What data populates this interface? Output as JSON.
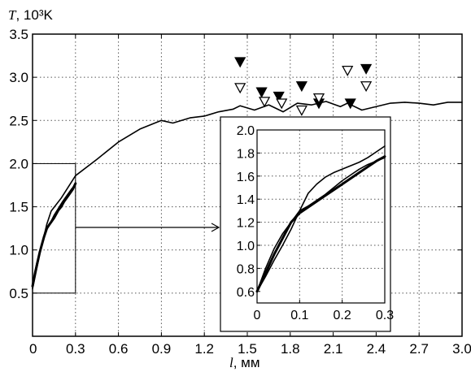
{
  "chart_data": {
    "type": "line",
    "xlabel_var": "l",
    "xlabel_unit": ", мм",
    "ylabel_var": "T",
    "ylabel_unit": ", 10³K",
    "xlim": [
      0,
      3.0
    ],
    "ylim": [
      0,
      3.5
    ],
    "xticks": [
      "0",
      "0.3",
      "0.6",
      "0.9",
      "1.2",
      "1.5",
      "1.8",
      "2.1",
      "2.4",
      "2.7",
      "3.0"
    ],
    "yticks": [
      "0.5",
      "1.0",
      "1.5",
      "2.0",
      "2.5",
      "3.0",
      "3.5"
    ],
    "grid": true,
    "series": [
      {
        "style": "thin-line",
        "x": [
          0.0,
          0.05,
          0.1,
          0.13,
          0.2,
          0.3,
          0.45,
          0.6,
          0.75,
          0.9,
          0.98,
          1.1,
          1.2,
          1.3,
          1.4,
          1.45,
          1.55,
          1.65,
          1.75,
          1.85,
          1.95,
          2.05,
          2.15,
          2.2,
          2.3,
          2.4,
          2.5,
          2.6,
          2.7,
          2.8,
          2.9,
          3.0
        ],
        "y": [
          0.55,
          0.95,
          1.3,
          1.45,
          1.6,
          1.86,
          2.05,
          2.25,
          2.4,
          2.5,
          2.47,
          2.53,
          2.55,
          2.6,
          2.63,
          2.67,
          2.62,
          2.68,
          2.6,
          2.7,
          2.68,
          2.72,
          2.66,
          2.7,
          2.62,
          2.66,
          2.7,
          2.71,
          2.7,
          2.68,
          2.71,
          2.71
        ]
      },
      {
        "style": "thick-line",
        "x": [
          0.0,
          0.02,
          0.05,
          0.08,
          0.1,
          0.12,
          0.15,
          0.18,
          0.2,
          0.22,
          0.25,
          0.28,
          0.3
        ],
        "y": [
          0.58,
          0.75,
          0.97,
          1.15,
          1.25,
          1.3,
          1.37,
          1.46,
          1.5,
          1.56,
          1.63,
          1.7,
          1.77
        ]
      },
      {
        "style": "thin-line",
        "x": [
          0.0,
          0.03,
          0.06,
          0.09,
          0.12,
          0.15,
          0.18,
          0.21,
          0.24,
          0.27,
          0.3
        ],
        "y": [
          0.6,
          0.85,
          1.05,
          1.22,
          1.3,
          1.4,
          1.48,
          1.56,
          1.63,
          1.7,
          1.76
        ]
      },
      {
        "style": "filled-triangle",
        "x": [
          1.45,
          1.6,
          1.72,
          1.88,
          2.0,
          2.22,
          2.33
        ],
        "y": [
          3.18,
          2.83,
          2.78,
          2.9,
          2.7,
          2.7,
          3.1
        ]
      },
      {
        "style": "open-triangle",
        "x": [
          1.45,
          1.62,
          1.74,
          1.88,
          2.0,
          2.2,
          2.33
        ],
        "y": [
          2.88,
          2.72,
          2.7,
          2.62,
          2.76,
          3.08,
          2.9
        ]
      }
    ],
    "inset": {
      "xlim": [
        0,
        0.3
      ],
      "ylim": [
        0.5,
        2.0
      ],
      "xticks": [
        "0",
        "0.1",
        "0.2",
        "0.3"
      ],
      "yticks": [
        "0.6",
        "0.8",
        "1.0",
        "1.2",
        "1.4",
        "1.6",
        "1.8",
        "2.0"
      ],
      "grid": true,
      "series": [
        {
          "style": "thick-line",
          "x": [
            0.0,
            0.02,
            0.04,
            0.06,
            0.08,
            0.1,
            0.12,
            0.14,
            0.16,
            0.18,
            0.2,
            0.22,
            0.24,
            0.26,
            0.28,
            0.3
          ],
          "y": [
            0.6,
            0.76,
            0.92,
            1.06,
            1.2,
            1.28,
            1.33,
            1.38,
            1.43,
            1.48,
            1.53,
            1.58,
            1.63,
            1.68,
            1.73,
            1.77
          ]
        },
        {
          "style": "thin-line",
          "x": [
            0.0,
            0.02,
            0.04,
            0.06,
            0.08,
            0.1,
            0.12,
            0.14,
            0.16,
            0.18,
            0.2,
            0.22,
            0.24,
            0.26,
            0.28,
            0.3
          ],
          "y": [
            0.6,
            0.73,
            0.87,
            1.0,
            1.14,
            1.3,
            1.45,
            1.53,
            1.59,
            1.63,
            1.66,
            1.69,
            1.72,
            1.76,
            1.81,
            1.86
          ]
        },
        {
          "style": "thin-line",
          "x": [
            0.0,
            0.02,
            0.04,
            0.06,
            0.08,
            0.1,
            0.12,
            0.14,
            0.16,
            0.18,
            0.2,
            0.22,
            0.24,
            0.26,
            0.28,
            0.3
          ],
          "y": [
            0.6,
            0.8,
            0.97,
            1.1,
            1.2,
            1.3,
            1.34,
            1.39,
            1.44,
            1.5,
            1.56,
            1.61,
            1.66,
            1.7,
            1.73,
            1.76
          ]
        }
      ]
    }
  }
}
